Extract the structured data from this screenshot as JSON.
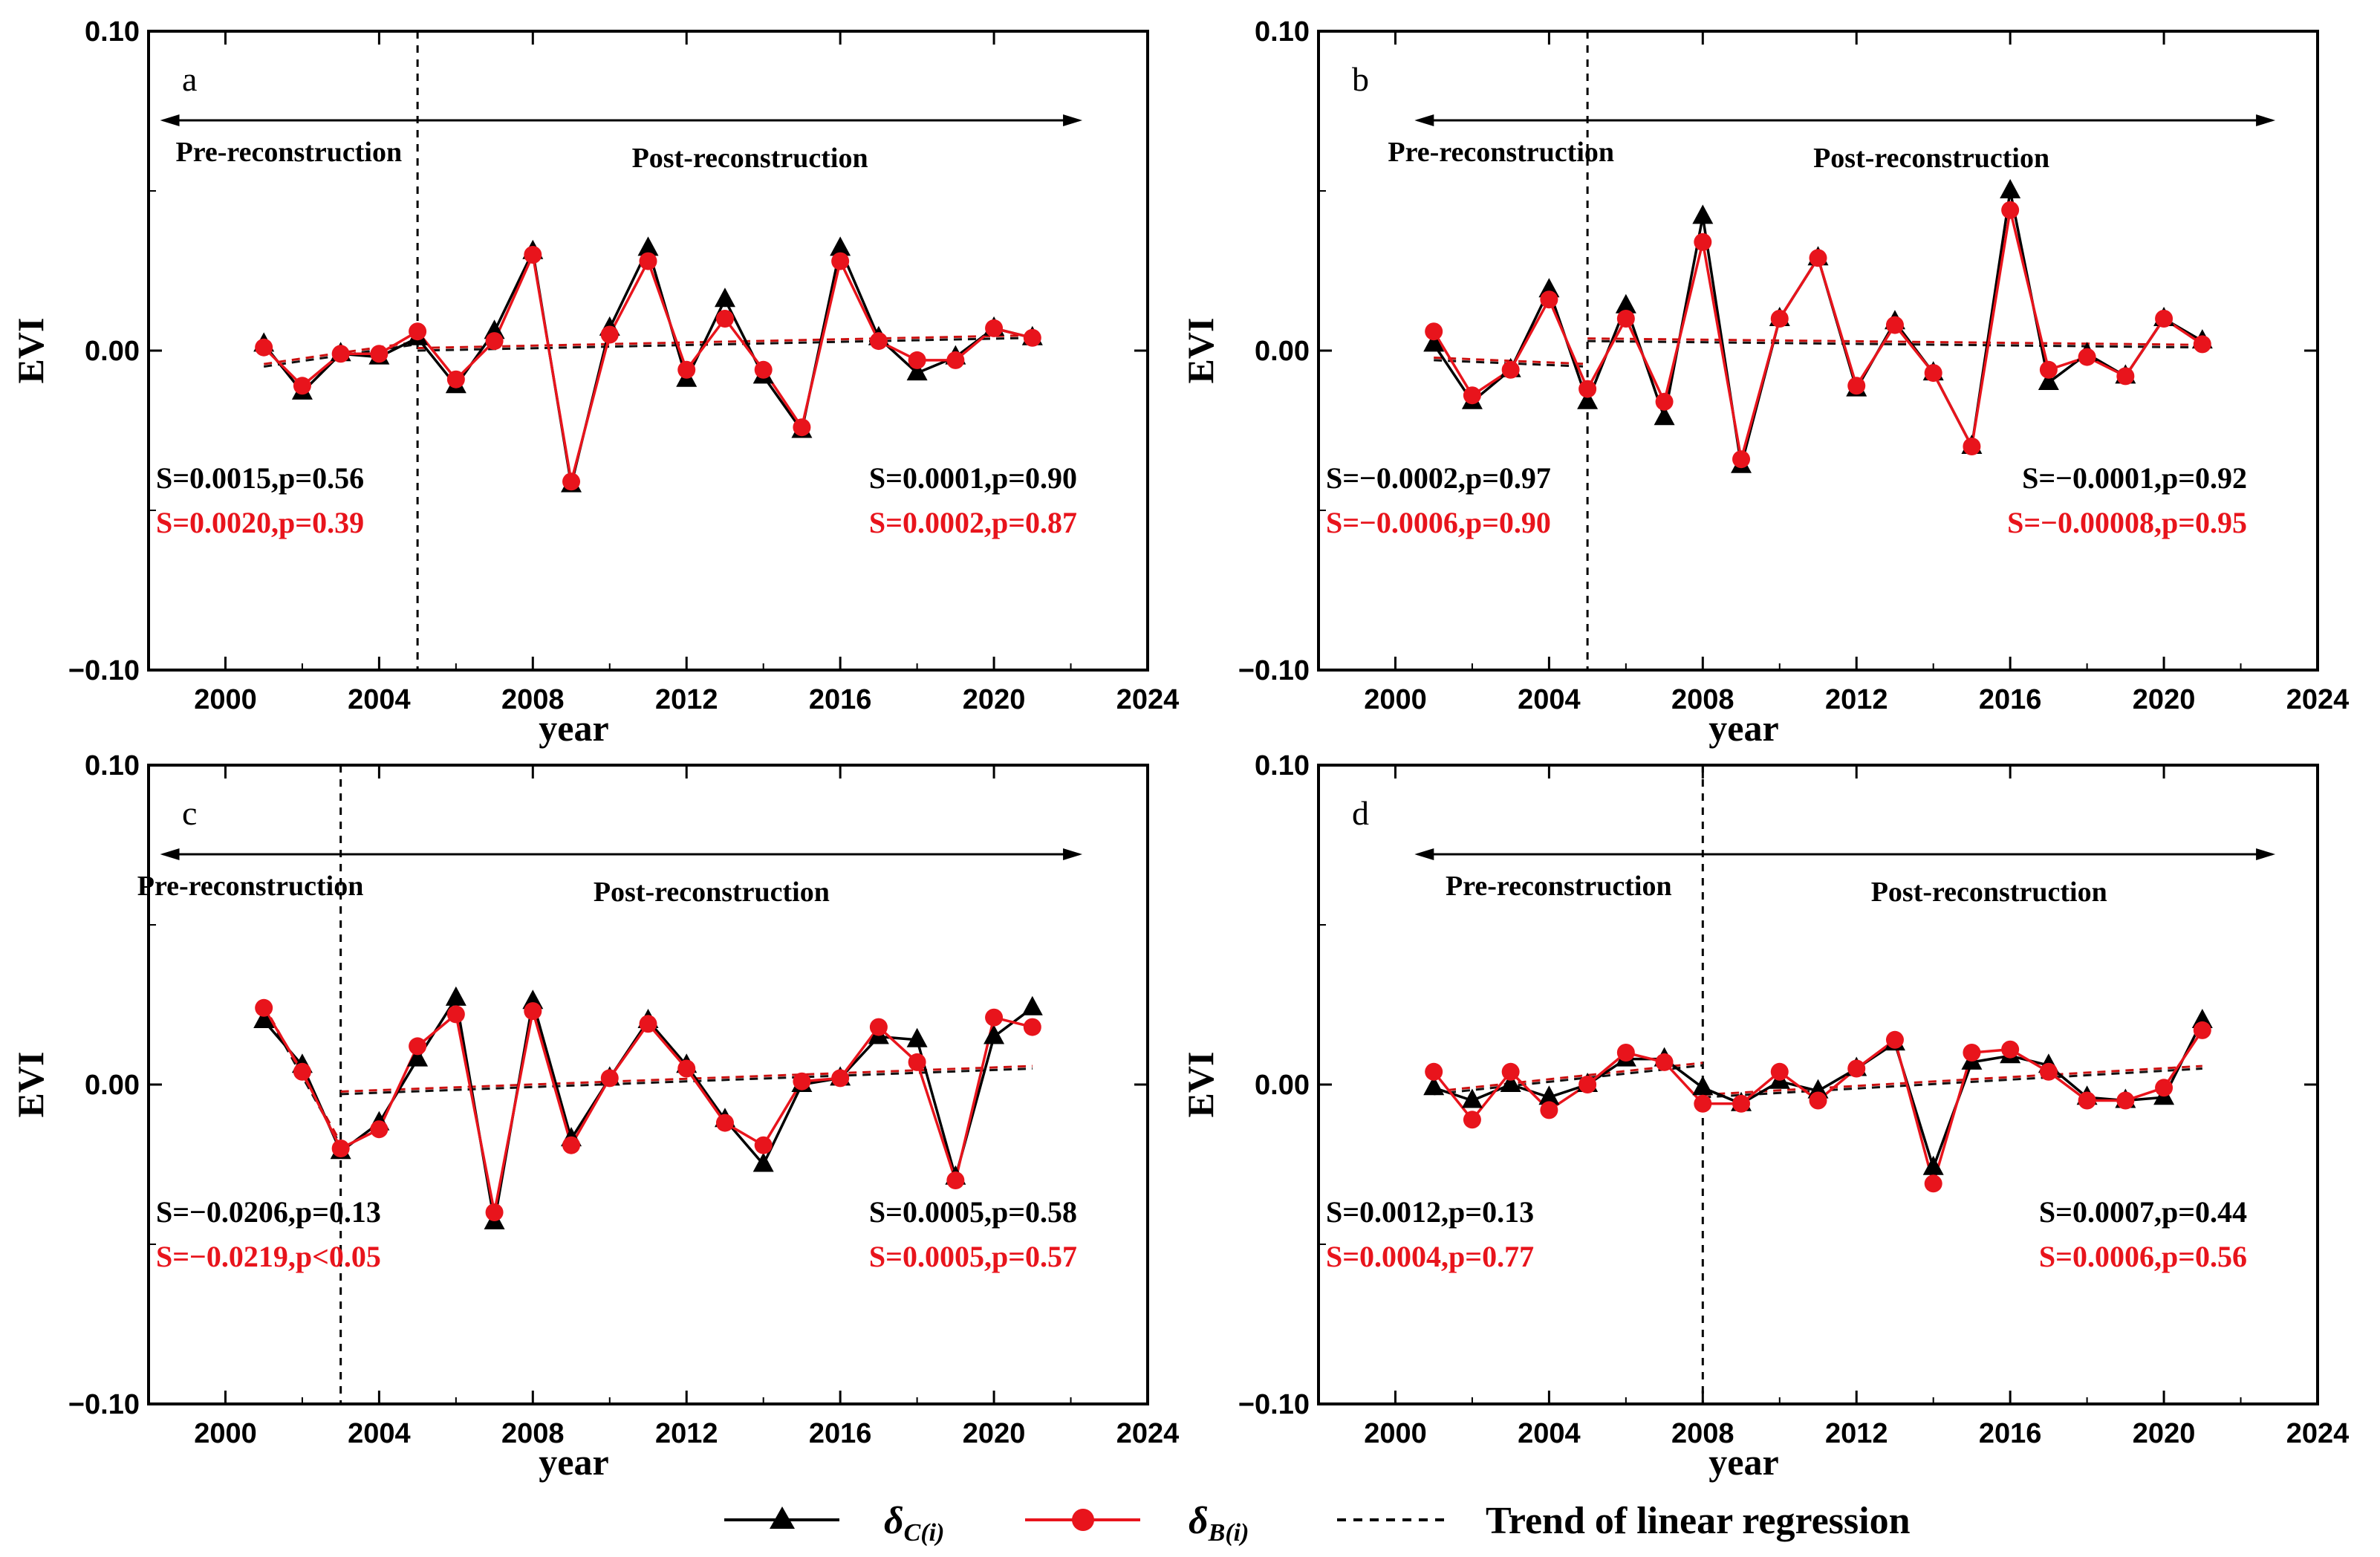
{
  "chart_data": [
    {
      "panel": "a",
      "type": "line",
      "xlabel": "year",
      "ylabel": "EVI",
      "xlim": [
        1998,
        2024
      ],
      "ylim": [
        -0.1,
        0.1
      ],
      "xticks": [
        2000,
        2004,
        2008,
        2012,
        2016,
        2020,
        2024
      ],
      "yticks": [
        {
          "v": 0.1,
          "label": "0.10"
        },
        {
          "v": 0.0,
          "label": "0.00"
        },
        {
          "v": -0.1,
          "label": "−0.10"
        }
      ],
      "divider_year": 2005,
      "arrow_range": [
        1998.3,
        2022.3
      ],
      "pre_label": "Pre-reconstruction",
      "post_label": "Post-reconstruction",
      "x": [
        2001,
        2002,
        2003,
        2004,
        2005,
        2006,
        2007,
        2008,
        2009,
        2010,
        2011,
        2012,
        2013,
        2014,
        2015,
        2016,
        2017,
        2018,
        2019,
        2020,
        2021
      ],
      "series": [
        {
          "name": "δC(i)",
          "marker": "triangle",
          "color": "#000000",
          "values": [
            0.002,
            -0.013,
            -0.001,
            -0.002,
            0.004,
            -0.011,
            0.006,
            0.031,
            -0.042,
            0.007,
            0.032,
            -0.009,
            0.016,
            -0.008,
            -0.025,
            0.032,
            0.004,
            -0.007,
            -0.002,
            0.007,
            0.004
          ]
        },
        {
          "name": "δB(i)",
          "marker": "circle",
          "color": "#e8141c",
          "values": [
            0.001,
            -0.011,
            -0.001,
            -0.001,
            0.006,
            -0.009,
            0.003,
            0.03,
            -0.041,
            0.005,
            0.028,
            -0.006,
            0.01,
            -0.006,
            -0.024,
            0.028,
            0.003,
            -0.003,
            -0.003,
            0.007,
            0.004
          ]
        }
      ],
      "trends": [
        {
          "from": 2001,
          "to": 2005,
          "y0": -0.005,
          "y1": 0.002
        },
        {
          "from": 2005,
          "to": 2021,
          "y0": 0.0,
          "y1": 0.004
        }
      ],
      "stats": {
        "pre": {
          "black": "S=0.0015,p=0.56",
          "red": "S=0.0020,p=0.39"
        },
        "post": {
          "black": "S=0.0001,p=0.90",
          "red": "S=0.0002,p=0.87"
        }
      }
    },
    {
      "panel": "b",
      "type": "line",
      "xlabel": "year",
      "ylabel": "EVI",
      "xlim": [
        1998,
        2024
      ],
      "ylim": [
        -0.1,
        0.1
      ],
      "xticks": [
        2000,
        2004,
        2008,
        2012,
        2016,
        2020,
        2024
      ],
      "yticks": [
        {
          "v": 0.1,
          "label": "0.10"
        },
        {
          "v": 0.0,
          "label": "0.00"
        },
        {
          "v": -0.1,
          "label": "−0.10"
        }
      ],
      "divider_year": 2005,
      "arrow_range": [
        2000.5,
        2022.9
      ],
      "pre_label": "Pre-reconstruction",
      "post_label": "Post-reconstruction",
      "x": [
        2001,
        2002,
        2003,
        2004,
        2005,
        2006,
        2007,
        2008,
        2009,
        2010,
        2011,
        2012,
        2013,
        2014,
        2015,
        2016,
        2017,
        2018,
        2019,
        2020,
        2021
      ],
      "series": [
        {
          "name": "δC(i)",
          "marker": "triangle",
          "color": "#000000",
          "values": [
            0.002,
            -0.016,
            -0.006,
            0.019,
            -0.016,
            0.014,
            -0.021,
            0.042,
            -0.036,
            0.01,
            0.029,
            -0.012,
            0.009,
            -0.007,
            -0.03,
            0.05,
            -0.01,
            -0.001,
            -0.008,
            0.01,
            0.003
          ]
        },
        {
          "name": "δB(i)",
          "marker": "circle",
          "color": "#e8141c",
          "values": [
            0.006,
            -0.014,
            -0.006,
            0.016,
            -0.012,
            0.01,
            -0.016,
            0.034,
            -0.034,
            0.01,
            0.029,
            -0.011,
            0.008,
            -0.007,
            -0.03,
            0.044,
            -0.006,
            -0.002,
            -0.008,
            0.01,
            0.002
          ]
        }
      ],
      "trends": [
        {
          "from": 2001,
          "to": 2005,
          "y0": -0.003,
          "y1": -0.005
        },
        {
          "from": 2005,
          "to": 2021,
          "y0": 0.003,
          "y1": 0.001
        }
      ],
      "stats": {
        "pre": {
          "black": "S=−0.0002,p=0.97",
          "red": "S=−0.0006,p=0.90"
        },
        "post": {
          "black": "S=−0.0001,p=0.92",
          "red": "S=−0.00008,p=0.95"
        }
      }
    },
    {
      "panel": "c",
      "type": "line",
      "xlabel": "year",
      "ylabel": "EVI",
      "xlim": [
        1998,
        2024
      ],
      "ylim": [
        -0.1,
        0.1
      ],
      "xticks": [
        2000,
        2004,
        2008,
        2012,
        2016,
        2020,
        2024
      ],
      "yticks": [
        {
          "v": 0.1,
          "label": "0.10"
        },
        {
          "v": 0.0,
          "label": "0.00"
        },
        {
          "v": -0.1,
          "label": "−0.10"
        }
      ],
      "divider_year": 2003,
      "arrow_range": [
        1998.3,
        2022.3
      ],
      "pre_label": "Pre-reconstruction",
      "post_label": "Post-reconstruction",
      "x": [
        2001,
        2002,
        2003,
        2004,
        2005,
        2006,
        2007,
        2008,
        2009,
        2010,
        2011,
        2012,
        2013,
        2014,
        2015,
        2016,
        2017,
        2018,
        2019,
        2020,
        2021
      ],
      "series": [
        {
          "name": "δC(i)",
          "marker": "triangle",
          "color": "#000000",
          "values": [
            0.02,
            0.006,
            -0.021,
            -0.012,
            0.008,
            0.027,
            -0.043,
            0.026,
            -0.017,
            0.002,
            0.02,
            0.006,
            -0.011,
            -0.025,
            0.0,
            0.002,
            0.015,
            0.014,
            -0.029,
            0.015,
            0.024
          ]
        },
        {
          "name": "δB(i)",
          "marker": "circle",
          "color": "#e8141c",
          "values": [
            0.024,
            0.004,
            -0.02,
            -0.014,
            0.012,
            0.022,
            -0.04,
            0.023,
            -0.019,
            0.002,
            0.019,
            0.005,
            -0.012,
            -0.019,
            0.001,
            0.002,
            0.018,
            0.007,
            -0.03,
            0.021,
            0.018
          ]
        }
      ],
      "trends": [
        {
          "from": 2001,
          "to": 2003,
          "y0": 0.024,
          "y1": -0.019
        },
        {
          "from": 2003,
          "to": 2021,
          "y0": -0.003,
          "y1": 0.005
        }
      ],
      "stats": {
        "pre": {
          "black": "S=−0.0206,p=0.13",
          "red": "S=−0.0219,p<0.05"
        },
        "post": {
          "black": "S=0.0005,p=0.58",
          "red": "S=0.0005,p=0.57"
        }
      }
    },
    {
      "panel": "d",
      "type": "line",
      "xlabel": "year",
      "ylabel": "EVI",
      "xlim": [
        1998,
        2024
      ],
      "ylim": [
        -0.1,
        0.1
      ],
      "xticks": [
        2000,
        2004,
        2008,
        2012,
        2016,
        2020,
        2024
      ],
      "yticks": [
        {
          "v": 0.1,
          "label": "0.10"
        },
        {
          "v": 0.0,
          "label": "0.00"
        },
        {
          "v": -0.1,
          "label": "−0.10"
        }
      ],
      "divider_year": 2008,
      "arrow_range": [
        2000.5,
        2022.9
      ],
      "pre_label": "Pre-reconstruction",
      "post_label": "Post-reconstruction",
      "x": [
        2001,
        2002,
        2003,
        2004,
        2005,
        2006,
        2007,
        2008,
        2009,
        2010,
        2011,
        2012,
        2013,
        2014,
        2015,
        2016,
        2017,
        2018,
        2019,
        2020,
        2021
      ],
      "series": [
        {
          "name": "δC(i)",
          "marker": "triangle",
          "color": "#000000",
          "values": [
            -0.001,
            -0.005,
            0.0,
            -0.004,
            0.0,
            0.008,
            0.008,
            -0.001,
            -0.006,
            0.001,
            -0.002,
            0.005,
            0.013,
            -0.026,
            0.007,
            0.009,
            0.006,
            -0.004,
            -0.005,
            -0.004,
            0.02
          ]
        },
        {
          "name": "δB(i)",
          "marker": "circle",
          "color": "#e8141c",
          "values": [
            0.004,
            -0.011,
            0.004,
            -0.008,
            0.0,
            0.01,
            0.007,
            -0.006,
            -0.006,
            0.004,
            -0.005,
            0.005,
            0.014,
            -0.031,
            0.01,
            0.011,
            0.004,
            -0.005,
            -0.005,
            -0.001,
            0.017
          ]
        }
      ],
      "trends": [
        {
          "from": 2001,
          "to": 2008,
          "y0": -0.003,
          "y1": 0.006
        },
        {
          "from": 2008,
          "to": 2021,
          "y0": -0.004,
          "y1": 0.005
        }
      ],
      "stats": {
        "pre": {
          "black": "S=0.0012,p=0.13",
          "red": "S=0.0004,p=0.77"
        },
        "post": {
          "black": "S=0.0007,p=0.44",
          "red": "S=0.0006,p=0.56"
        }
      }
    }
  ],
  "legend": {
    "items": [
      {
        "label": "δC(i)",
        "marker": "triangle",
        "color": "#000000"
      },
      {
        "label": "δB(i)",
        "marker": "circle",
        "color": "#e8141c"
      },
      {
        "label": "Trend of linear regression",
        "marker": "dash",
        "color": "#000000"
      }
    ]
  },
  "colors": {
    "black_series": "#000000",
    "red_series": "#e8141c",
    "trend": "#cc1111"
  }
}
